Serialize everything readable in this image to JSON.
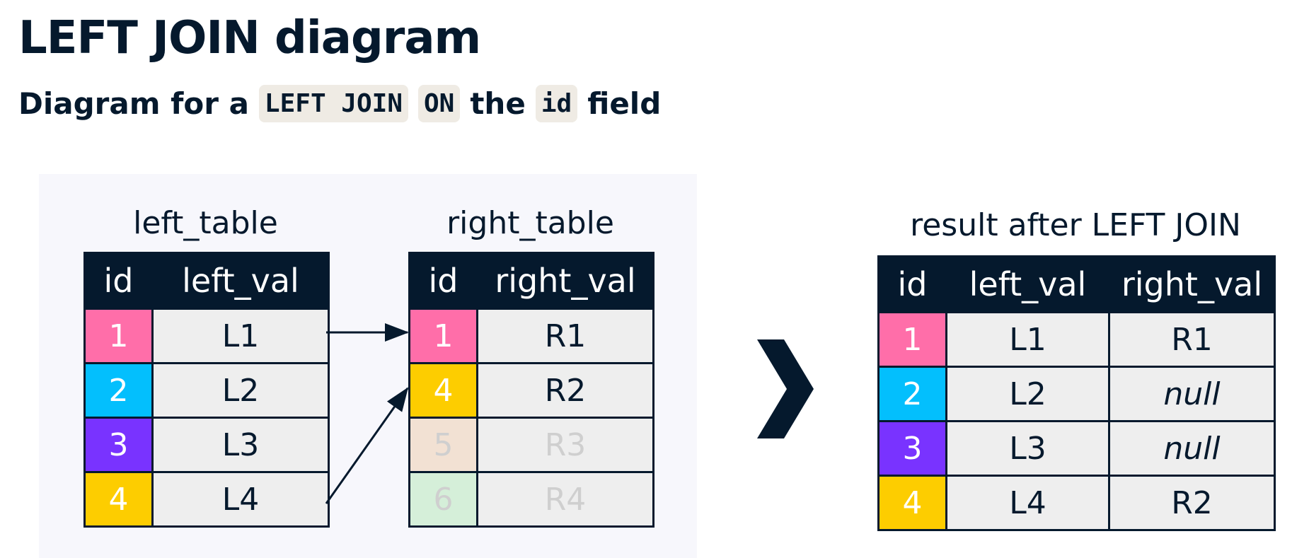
{
  "title": "LEFT JOIN diagram",
  "subtitle": {
    "prefix": "Diagram for a",
    "code1": "LEFT JOIN",
    "code2": "ON",
    "middle": "the",
    "code3": "id",
    "suffix": "field"
  },
  "left_table": {
    "label": "left_table",
    "headers": [
      "id",
      "left_val"
    ],
    "rows": [
      {
        "id": "1",
        "val": "L1",
        "color": "#ff6ea9"
      },
      {
        "id": "2",
        "val": "L2",
        "color": "#03bffd"
      },
      {
        "id": "3",
        "val": "L3",
        "color": "#7933ff"
      },
      {
        "id": "4",
        "val": "L4",
        "color": "#fdcd00"
      }
    ]
  },
  "right_table": {
    "label": "right_table",
    "headers": [
      "id",
      "right_val"
    ],
    "rows": [
      {
        "id": "1",
        "val": "R1",
        "color": "#ff6ea9",
        "faded": false
      },
      {
        "id": "4",
        "val": "R2",
        "color": "#fdcd00",
        "faded": false
      },
      {
        "id": "5",
        "val": "R3",
        "color": "#f2e1d3",
        "faded": true
      },
      {
        "id": "6",
        "val": "R4",
        "color": "#d5efd9",
        "faded": true
      }
    ]
  },
  "arrow_icon": "chevron-right-icon",
  "result_table": {
    "label": "result after LEFT JOIN",
    "headers": [
      "id",
      "left_val",
      "right_val"
    ],
    "rows": [
      {
        "id": "1",
        "left": "L1",
        "right": "R1",
        "right_null": false,
        "color": "#ff6ea9"
      },
      {
        "id": "2",
        "left": "L2",
        "right": "null",
        "right_null": true,
        "color": "#03bffd"
      },
      {
        "id": "3",
        "left": "L3",
        "right": "null",
        "right_null": true,
        "color": "#7933ff"
      },
      {
        "id": "4",
        "left": "L4",
        "right": "R2",
        "right_null": false,
        "color": "#fdcd00"
      }
    ]
  },
  "colors": {
    "dark": "#05192d",
    "cell_bg": "#eeeeee",
    "panel_bg": "#f7f7fc",
    "code_bg": "#efebe4"
  }
}
